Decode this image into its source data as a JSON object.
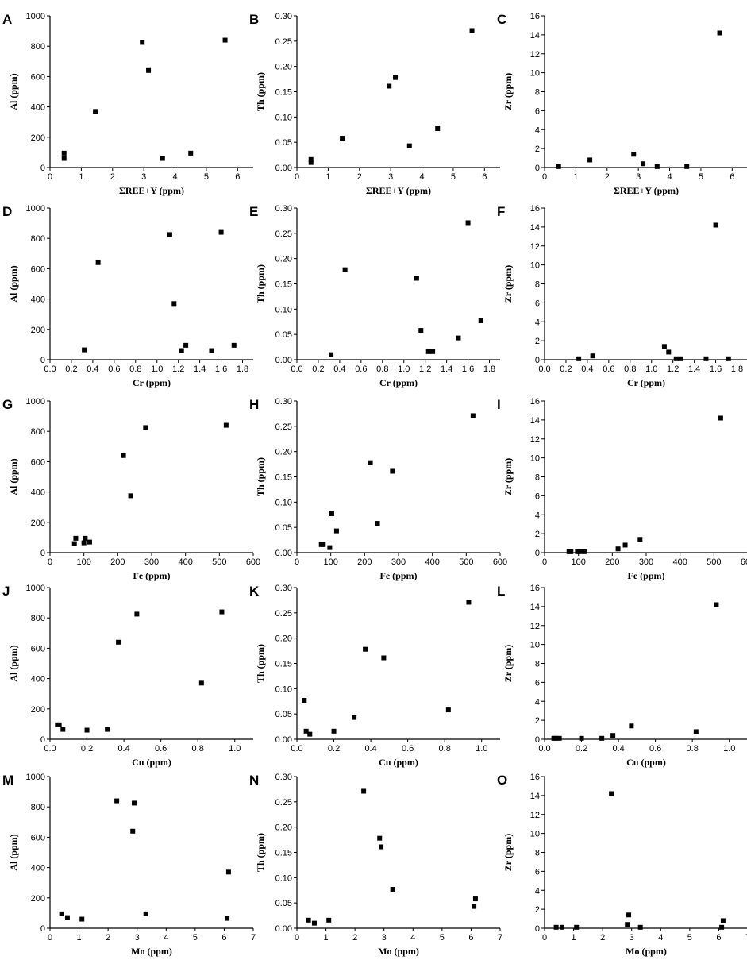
{
  "figure": {
    "background": "#ffffff",
    "marker_color": "#000000",
    "marker": "filled-square"
  },
  "chart_data": [
    {
      "panel": "A",
      "type": "scatter",
      "xlabel": "ΣREE+Y (ppm)",
      "ylabel": "Al (ppm)",
      "xlim": [
        0,
        6.5
      ],
      "ylim": [
        0,
        1000
      ],
      "xticks": [
        0,
        1,
        2,
        3,
        4,
        5,
        6
      ],
      "xtick_labels": [
        "0",
        "1",
        "2",
        "3",
        "4",
        "5",
        "6"
      ],
      "yticks": [
        0,
        200,
        400,
        600,
        800,
        1000
      ],
      "ytick_labels": [
        "0",
        "200",
        "400",
        "600",
        "800",
        "1000"
      ],
      "grid": false,
      "legend": "none",
      "x": [
        0.45,
        0.45,
        1.45,
        2.95,
        3.15,
        3.6,
        4.5,
        5.6
      ],
      "y": [
        95,
        60,
        370,
        825,
        640,
        60,
        95,
        840
      ]
    },
    {
      "panel": "B",
      "type": "scatter",
      "xlabel": "ΣREE+Y (ppm)",
      "ylabel": "Th (ppm)",
      "xlim": [
        0,
        6.5
      ],
      "ylim": [
        0,
        0.3
      ],
      "xticks": [
        0,
        1,
        2,
        3,
        4,
        5,
        6
      ],
      "xtick_labels": [
        "0",
        "1",
        "2",
        "3",
        "4",
        "5",
        "6"
      ],
      "yticks": [
        0,
        0.05,
        0.1,
        0.15,
        0.2,
        0.25,
        0.3
      ],
      "ytick_labels": [
        "0.00",
        "0.05",
        "0.10",
        "0.15",
        "0.20",
        "0.25",
        "0.30"
      ],
      "grid": false,
      "legend": "none",
      "x": [
        0.45,
        0.45,
        1.45,
        2.95,
        3.15,
        3.6,
        4.5,
        5.6
      ],
      "y": [
        0.016,
        0.01,
        0.058,
        0.161,
        0.178,
        0.043,
        0.077,
        0.271
      ]
    },
    {
      "panel": "C",
      "type": "scatter",
      "xlabel": "ΣREE+Y (ppm)",
      "ylabel": "Zr (ppm)",
      "xlim": [
        0,
        6.5
      ],
      "ylim": [
        0,
        16
      ],
      "xticks": [
        0,
        1,
        2,
        3,
        4,
        5,
        6
      ],
      "xtick_labels": [
        "0",
        "1",
        "2",
        "3",
        "4",
        "5",
        "6"
      ],
      "yticks": [
        0,
        2,
        4,
        6,
        8,
        10,
        12,
        14,
        16
      ],
      "ytick_labels": [
        "0",
        "2",
        "4",
        "6",
        "8",
        "10",
        "12",
        "14",
        "16"
      ],
      "grid": false,
      "legend": "none",
      "x": [
        0.45,
        1.45,
        2.85,
        3.15,
        3.6,
        4.55,
        5.6
      ],
      "y": [
        0.1,
        0.8,
        1.4,
        0.4,
        0.1,
        0.1,
        14.2
      ]
    },
    {
      "panel": "D",
      "type": "scatter",
      "xlabel": "Cr (ppm)",
      "ylabel": "Al (ppm)",
      "xlim": [
        0,
        1.9
      ],
      "ylim": [
        0,
        1000
      ],
      "xticks": [
        0,
        0.2,
        0.4,
        0.6,
        0.8,
        1.0,
        1.2,
        1.4,
        1.6,
        1.8
      ],
      "xtick_labels": [
        "0.0",
        "0.2",
        "0.4",
        "0.6",
        "0.8",
        "1.0",
        "1.2",
        "1.4",
        "1.6",
        "1.8"
      ],
      "yticks": [
        0,
        200,
        400,
        600,
        800,
        1000
      ],
      "ytick_labels": [
        "0",
        "200",
        "400",
        "600",
        "800",
        "1000"
      ],
      "grid": false,
      "legend": "none",
      "x": [
        0.32,
        0.45,
        1.12,
        1.16,
        1.23,
        1.27,
        1.51,
        1.6,
        1.72
      ],
      "y": [
        65,
        640,
        825,
        370,
        60,
        95,
        60,
        840,
        95
      ]
    },
    {
      "panel": "E",
      "type": "scatter",
      "xlabel": "Cr (ppm)",
      "ylabel": "Th (ppm)",
      "xlim": [
        0,
        1.9
      ],
      "ylim": [
        0,
        0.3
      ],
      "xticks": [
        0,
        0.2,
        0.4,
        0.6,
        0.8,
        1.0,
        1.2,
        1.4,
        1.6,
        1.8
      ],
      "xtick_labels": [
        "0.0",
        "0.2",
        "0.4",
        "0.6",
        "0.8",
        "1.0",
        "1.2",
        "1.4",
        "1.6",
        "1.8"
      ],
      "yticks": [
        0,
        0.05,
        0.1,
        0.15,
        0.2,
        0.25,
        0.3
      ],
      "ytick_labels": [
        "0.00",
        "0.05",
        "0.10",
        "0.15",
        "0.20",
        "0.25",
        "0.30"
      ],
      "grid": false,
      "legend": "none",
      "x": [
        0.32,
        0.45,
        1.12,
        1.16,
        1.23,
        1.27,
        1.51,
        1.6,
        1.72
      ],
      "y": [
        0.01,
        0.178,
        0.161,
        0.058,
        0.016,
        0.016,
        0.043,
        0.271,
        0.077
      ]
    },
    {
      "panel": "F",
      "type": "scatter",
      "xlabel": "Cr (ppm)",
      "ylabel": "Zr (ppm)",
      "xlim": [
        0,
        1.9
      ],
      "ylim": [
        0,
        16
      ],
      "xticks": [
        0,
        0.2,
        0.4,
        0.6,
        0.8,
        1.0,
        1.2,
        1.4,
        1.6,
        1.8
      ],
      "xtick_labels": [
        "0.0",
        "0.2",
        "0.4",
        "0.6",
        "0.8",
        "1.0",
        "1.2",
        "1.4",
        "1.6",
        "1.8"
      ],
      "yticks": [
        0,
        2,
        4,
        6,
        8,
        10,
        12,
        14,
        16
      ],
      "ytick_labels": [
        "0",
        "2",
        "4",
        "6",
        "8",
        "10",
        "12",
        "14",
        "16"
      ],
      "grid": false,
      "legend": "none",
      "x": [
        0.32,
        0.45,
        1.12,
        1.16,
        1.23,
        1.27,
        1.51,
        1.6,
        1.72
      ],
      "y": [
        0.1,
        0.4,
        1.4,
        0.8,
        0.1,
        0.1,
        0.1,
        14.2,
        0.1
      ]
    },
    {
      "panel": "G",
      "type": "scatter",
      "xlabel": "Fe (ppm)",
      "ylabel": "Al (ppm)",
      "xlim": [
        0,
        600
      ],
      "ylim": [
        0,
        1000
      ],
      "xticks": [
        0,
        100,
        200,
        300,
        400,
        500,
        600
      ],
      "xtick_labels": [
        "0",
        "100",
        "200",
        "300",
        "400",
        "500",
        "600"
      ],
      "yticks": [
        0,
        200,
        400,
        600,
        800,
        1000
      ],
      "ytick_labels": [
        "0",
        "200",
        "400",
        "600",
        "800",
        "1000"
      ],
      "grid": false,
      "legend": "none",
      "x": [
        72,
        76,
        100,
        104,
        117,
        217,
        238,
        282,
        520
      ],
      "y": [
        60,
        95,
        65,
        95,
        70,
        640,
        375,
        825,
        840
      ]
    },
    {
      "panel": "H",
      "type": "scatter",
      "xlabel": "Fe (ppm)",
      "ylabel": "Th (ppm)",
      "xlim": [
        0,
        600
      ],
      "ylim": [
        0,
        0.3
      ],
      "xticks": [
        0,
        100,
        200,
        300,
        400,
        500,
        600
      ],
      "xtick_labels": [
        "0",
        "100",
        "200",
        "300",
        "400",
        "500",
        "600"
      ],
      "yticks": [
        0,
        0.05,
        0.1,
        0.15,
        0.2,
        0.25,
        0.3
      ],
      "ytick_labels": [
        "0.00",
        "0.05",
        "0.10",
        "0.15",
        "0.20",
        "0.25",
        "0.30"
      ],
      "grid": false,
      "legend": "none",
      "x": [
        72,
        78,
        97,
        103,
        117,
        217,
        238,
        282,
        520
      ],
      "y": [
        0.016,
        0.016,
        0.01,
        0.077,
        0.043,
        0.178,
        0.058,
        0.161,
        0.271
      ]
    },
    {
      "panel": "I",
      "type": "scatter",
      "xlabel": "Fe (ppm)",
      "ylabel": "Zr (ppm)",
      "xlim": [
        0,
        600
      ],
      "ylim": [
        0,
        16
      ],
      "xticks": [
        0,
        100,
        200,
        300,
        400,
        500,
        600
      ],
      "xtick_labels": [
        "0",
        "100",
        "200",
        "300",
        "400",
        "500",
        "600"
      ],
      "yticks": [
        0,
        2,
        4,
        6,
        8,
        10,
        12,
        14,
        16
      ],
      "ytick_labels": [
        "0",
        "2",
        "4",
        "6",
        "8",
        "10",
        "12",
        "14",
        "16"
      ],
      "grid": false,
      "legend": "none",
      "x": [
        72,
        78,
        97,
        103,
        117,
        217,
        238,
        282,
        520
      ],
      "y": [
        0.1,
        0.1,
        0.1,
        0.1,
        0.1,
        0.4,
        0.8,
        1.4,
        14.2
      ]
    },
    {
      "panel": "J",
      "type": "scatter",
      "xlabel": "Cu (ppm)",
      "ylabel": "Al (ppm)",
      "xlim": [
        0,
        1.1
      ],
      "ylim": [
        0,
        1000
      ],
      "xticks": [
        0,
        0.2,
        0.4,
        0.6,
        0.8,
        1.0
      ],
      "xtick_labels": [
        "0.0",
        "0.2",
        "0.4",
        "0.6",
        "0.8",
        "1.0"
      ],
      "yticks": [
        0,
        200,
        400,
        600,
        800,
        1000
      ],
      "ytick_labels": [
        "0",
        "200",
        "400",
        "600",
        "800",
        "1000"
      ],
      "grid": false,
      "legend": "none",
      "x": [
        0.04,
        0.05,
        0.07,
        0.2,
        0.31,
        0.37,
        0.47,
        0.82,
        0.93
      ],
      "y": [
        95,
        95,
        65,
        60,
        65,
        640,
        825,
        370,
        840
      ]
    },
    {
      "panel": "K",
      "type": "scatter",
      "xlabel": "Cu (ppm)",
      "ylabel": "Th (ppm)",
      "xlim": [
        0,
        1.1
      ],
      "ylim": [
        0,
        0.3
      ],
      "xticks": [
        0,
        0.2,
        0.4,
        0.6,
        0.8,
        1.0
      ],
      "xtick_labels": [
        "0.0",
        "0.2",
        "0.4",
        "0.6",
        "0.8",
        "1.0"
      ],
      "yticks": [
        0,
        0.05,
        0.1,
        0.15,
        0.2,
        0.25,
        0.3
      ],
      "ytick_labels": [
        "0.00",
        "0.05",
        "0.10",
        "0.15",
        "0.20",
        "0.25",
        "0.30"
      ],
      "grid": false,
      "legend": "none",
      "x": [
        0.04,
        0.05,
        0.07,
        0.2,
        0.31,
        0.37,
        0.47,
        0.82,
        0.93
      ],
      "y": [
        0.077,
        0.016,
        0.01,
        0.016,
        0.043,
        0.178,
        0.161,
        0.058,
        0.271
      ]
    },
    {
      "panel": "L",
      "type": "scatter",
      "xlabel": "Cu (ppm)",
      "ylabel": "Zr (ppm)",
      "xlim": [
        0,
        1.1
      ],
      "ylim": [
        0,
        16
      ],
      "xticks": [
        0,
        0.2,
        0.4,
        0.6,
        0.8,
        1.0
      ],
      "xtick_labels": [
        "0.0",
        "0.2",
        "0.4",
        "0.6",
        "0.8",
        "1.0"
      ],
      "yticks": [
        0,
        2,
        4,
        6,
        8,
        10,
        12,
        14,
        16
      ],
      "ytick_labels": [
        "0",
        "2",
        "4",
        "6",
        "8",
        "10",
        "12",
        "14",
        "16"
      ],
      "grid": false,
      "legend": "none",
      "x": [
        0.05,
        0.06,
        0.08,
        0.2,
        0.31,
        0.37,
        0.47,
        0.82,
        0.93
      ],
      "y": [
        0.1,
        0.1,
        0.1,
        0.1,
        0.1,
        0.4,
        1.4,
        0.8,
        14.2
      ]
    },
    {
      "panel": "M",
      "type": "scatter",
      "xlabel": "Mo (ppm)",
      "ylabel": "Al (ppm)",
      "xlim": [
        0,
        7
      ],
      "ylim": [
        0,
        1000
      ],
      "xticks": [
        0,
        1,
        2,
        3,
        4,
        5,
        6,
        7
      ],
      "xtick_labels": [
        "0",
        "1",
        "2",
        "3",
        "4",
        "5",
        "6",
        "7"
      ],
      "yticks": [
        0,
        200,
        400,
        600,
        800,
        1000
      ],
      "ytick_labels": [
        "0",
        "200",
        "400",
        "600",
        "800",
        "1000"
      ],
      "grid": false,
      "legend": "none",
      "x": [
        0.4,
        0.6,
        1.1,
        2.3,
        2.85,
        2.9,
        3.3,
        6.1,
        6.15
      ],
      "y": [
        95,
        70,
        60,
        840,
        640,
        825,
        95,
        65,
        370
      ]
    },
    {
      "panel": "N",
      "type": "scatter",
      "xlabel": "Mo (ppm)",
      "ylabel": "Th (ppm)",
      "xlim": [
        0,
        7
      ],
      "ylim": [
        0,
        0.3
      ],
      "xticks": [
        0,
        1,
        2,
        3,
        4,
        5,
        6,
        7
      ],
      "xtick_labels": [
        "0",
        "1",
        "2",
        "3",
        "4",
        "5",
        "6",
        "7"
      ],
      "yticks": [
        0,
        0.05,
        0.1,
        0.15,
        0.2,
        0.25,
        0.3
      ],
      "ytick_labels": [
        "0.00",
        "0.05",
        "0.10",
        "0.15",
        "0.20",
        "0.25",
        "0.30"
      ],
      "grid": false,
      "legend": "none",
      "x": [
        0.4,
        0.6,
        1.1,
        2.3,
        2.85,
        2.9,
        3.3,
        6.1,
        6.15
      ],
      "y": [
        0.016,
        0.01,
        0.016,
        0.271,
        0.178,
        0.161,
        0.077,
        0.043,
        0.058
      ]
    },
    {
      "panel": "O",
      "type": "scatter",
      "xlabel": "Mo (ppm)",
      "ylabel": "Zr (ppm)",
      "xlim": [
        0,
        7
      ],
      "ylim": [
        0,
        16
      ],
      "xticks": [
        0,
        1,
        2,
        3,
        4,
        5,
        6,
        7
      ],
      "xtick_labels": [
        "0",
        "1",
        "2",
        "3",
        "4",
        "5",
        "6",
        "7"
      ],
      "yticks": [
        0,
        2,
        4,
        6,
        8,
        10,
        12,
        14,
        16
      ],
      "ytick_labels": [
        "0",
        "2",
        "4",
        "6",
        "8",
        "10",
        "12",
        "14",
        "16"
      ],
      "grid": false,
      "legend": "none",
      "x": [
        0.4,
        0.6,
        1.1,
        2.3,
        2.85,
        2.9,
        3.3,
        6.1,
        6.15
      ],
      "y": [
        0.1,
        0.1,
        0.1,
        14.2,
        0.4,
        1.4,
        0.1,
        0.1,
        0.8
      ]
    }
  ]
}
